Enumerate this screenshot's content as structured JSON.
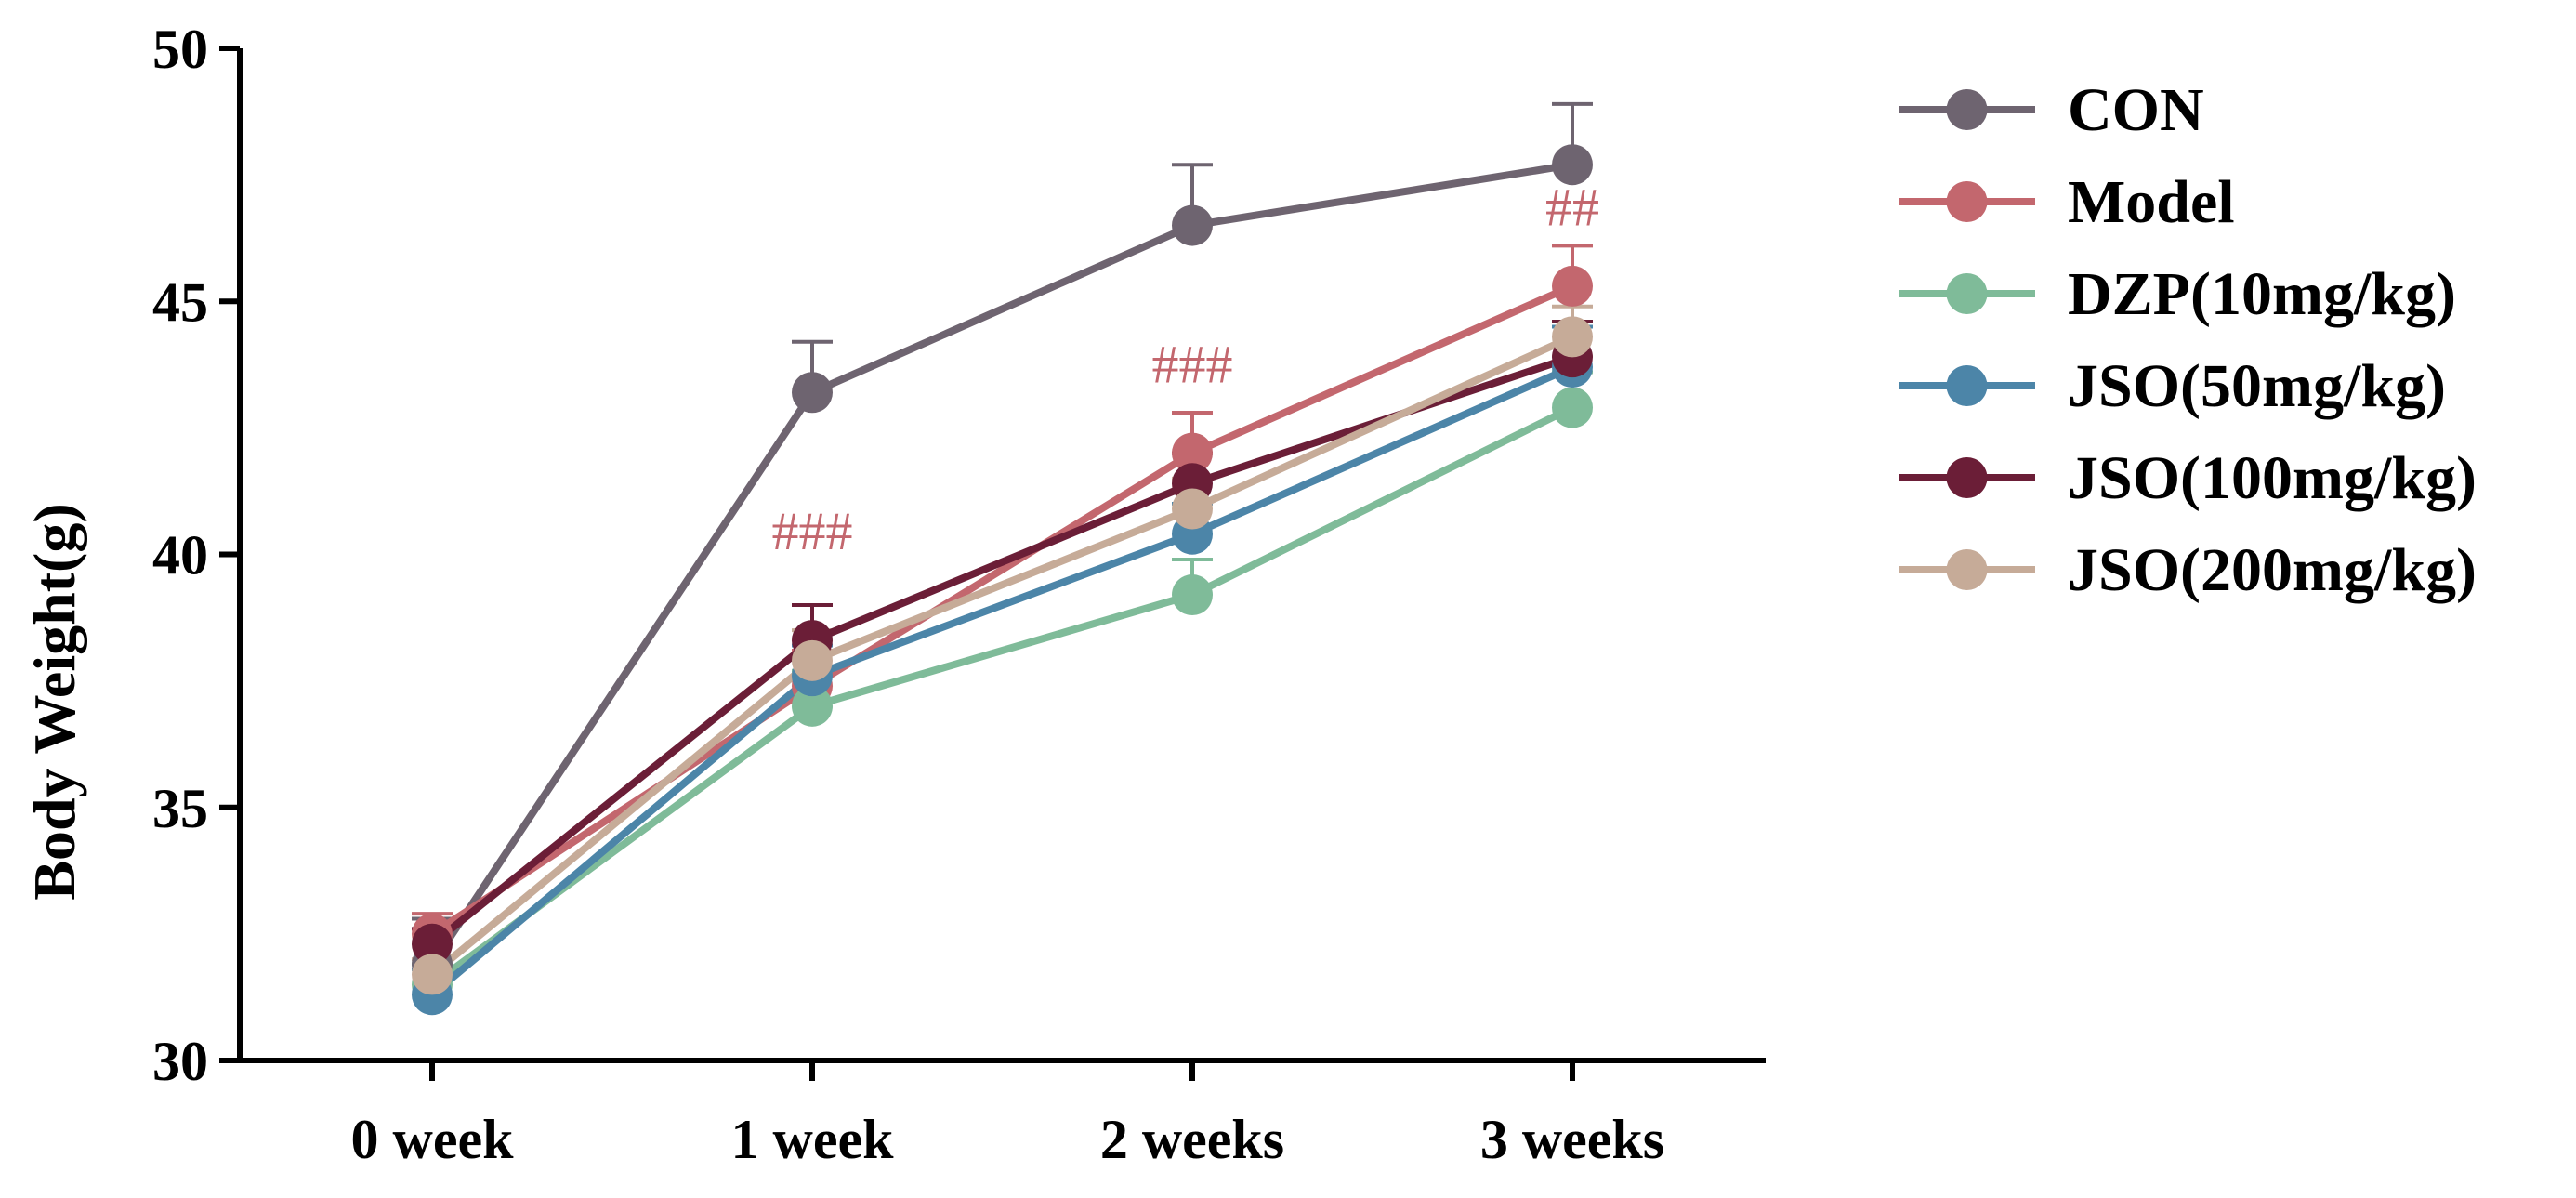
{
  "chart_data": {
    "type": "line",
    "title": "",
    "xlabel": "",
    "ylabel": "Body Weight(g)",
    "categories": [
      "0 week",
      "1 week",
      "2 weeks",
      "3 weeks"
    ],
    "ylim": [
      30,
      50
    ],
    "yticks": [
      "30",
      "35",
      "40",
      "45",
      "50"
    ],
    "grid": false,
    "legend_position": "right",
    "series": [
      {
        "name": "CON",
        "color": "#6e6470",
        "values": [
          31.9,
          43.2,
          46.5,
          47.7
        ],
        "errors": [
          0.9,
          1.0,
          1.2,
          1.2
        ]
      },
      {
        "name": "Model",
        "color": "#c3676e",
        "values": [
          32.5,
          37.4,
          42.0,
          45.3
        ],
        "errors": [
          0.4,
          0.7,
          0.8,
          0.8
        ]
      },
      {
        "name": "DZP(10mg/kg)",
        "color": "#7fbb99",
        "values": [
          31.5,
          37.0,
          39.2,
          42.9
        ],
        "errors": [
          0.4,
          0.7,
          0.7,
          0.7
        ]
      },
      {
        "name": "JSO(50mg/kg)",
        "color": "#4c85a8",
        "values": [
          31.3,
          37.6,
          40.4,
          43.7
        ],
        "errors": [
          0.5,
          0.6,
          0.6,
          0.8
        ]
      },
      {
        "name": "JSO(100mg/kg)",
        "color": "#6b1e37",
        "values": [
          32.3,
          38.3,
          41.4,
          43.9
        ],
        "errors": [
          0.3,
          0.7,
          0.6,
          0.7
        ]
      },
      {
        "name": "JSO(200mg/kg)",
        "color": "#c6ab98",
        "values": [
          31.7,
          37.9,
          40.9,
          44.3
        ],
        "errors": [
          0.3,
          0.6,
          0.6,
          0.6
        ]
      }
    ],
    "annotations": [
      {
        "text": "###",
        "category": "1 week",
        "y": 40.1,
        "color": "#c3676e"
      },
      {
        "text": "###",
        "category": "2 weeks",
        "y": 43.4,
        "color": "#c3676e"
      },
      {
        "text": "##",
        "category": "3 weeks",
        "y": 46.5,
        "color": "#c3676e"
      }
    ]
  }
}
